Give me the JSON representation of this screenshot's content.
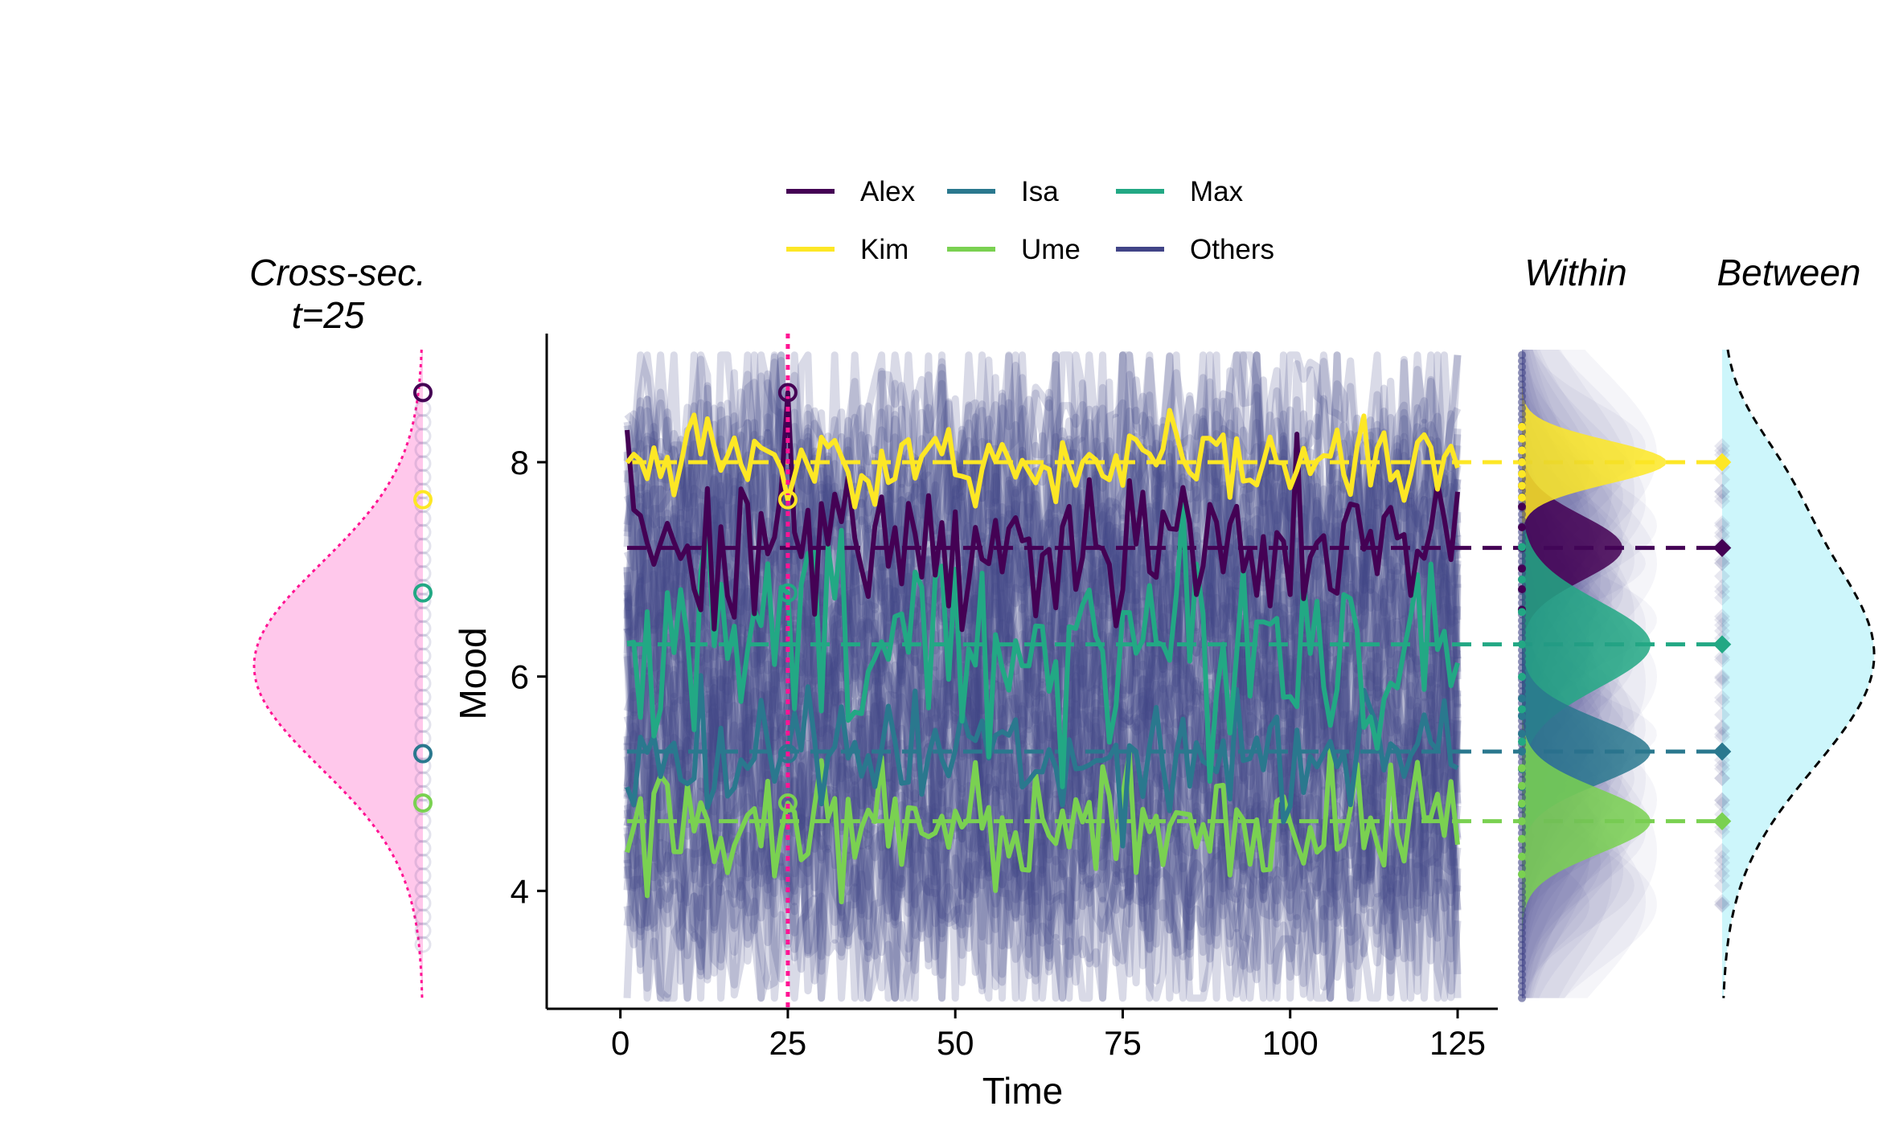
{
  "chart_data": {
    "type": "line",
    "xlabel": "Time",
    "ylabel": "Mood",
    "xlim": [
      -11,
      131
    ],
    "ylim": [
      2.9,
      9.2
    ],
    "xticks": [
      0,
      25,
      50,
      75,
      100,
      125
    ],
    "yticks": [
      4,
      6,
      8
    ],
    "grid": false,
    "legend_position": "top",
    "cross_section_time": 25,
    "panel_titles": {
      "cross_section": [
        "Cross-sec.",
        "t=25"
      ],
      "within": "Within",
      "between": "Between"
    },
    "series": [
      {
        "name": "Alex",
        "color": "#440154",
        "mean": 7.2,
        "sd": 0.35,
        "value_at_t25": 8.65
      },
      {
        "name": "Kim",
        "color": "#FDE725",
        "mean": 8.0,
        "sd": 0.2,
        "value_at_t25": 7.65
      },
      {
        "name": "Isa",
        "color": "#2A788E",
        "mean": 5.3,
        "sd": 0.3,
        "value_at_t25": 5.28
      },
      {
        "name": "Ume",
        "color": "#7AD151",
        "mean": 4.65,
        "sd": 0.3,
        "value_at_t25": 4.82
      },
      {
        "name": "Max",
        "color": "#22A884",
        "mean": 6.3,
        "sd": 0.55,
        "value_at_t25": 6.78
      },
      {
        "name": "Others",
        "color": "#414487",
        "mean": 6.0,
        "sd": 1.0
      }
    ],
    "legend_order": [
      "Alex",
      "Isa",
      "Max",
      "Kim",
      "Ume",
      "Others"
    ],
    "colors": {
      "cross_section_fill": "#FFC8EB",
      "cross_section_line": "#FF1493",
      "between_fill": "#CDF6FB",
      "others": "#414487"
    }
  }
}
